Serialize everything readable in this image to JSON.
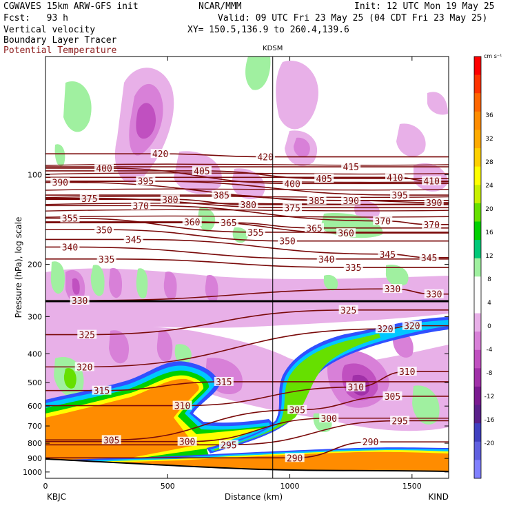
{
  "header": {
    "model": "CGWAVES 15km ARW-GFS init",
    "center": "NCAR/MMM",
    "init": "Init: 12 UTC Mon 19 May 25",
    "fcst": "Fcst:   93 h",
    "valid": "Valid: 09 UTC Fri 23 May 25 (04 CDT Fri 23 May 25)",
    "field1": "Vertical velocity",
    "xy": "XY= 150.5,136.9 to 260.4,139.6",
    "field2": "Boundary Layer Tracer",
    "field3": "Potential Temperature"
  },
  "colors": {
    "theta": "#7a0a0a",
    "vertical_line": "#000000"
  },
  "chart_data": {
    "type": "heatmap",
    "title": "",
    "xlabel": "Distance (km)",
    "ylabel": "Pressure (hPa), log scale",
    "xlim": [
      0,
      1650
    ],
    "ylim": [
      1050,
      40
    ],
    "y_scale": "log",
    "x_ticks": [
      0,
      500,
      1000,
      1500
    ],
    "y_ticks": [
      100,
      200,
      300,
      400,
      500,
      600,
      700,
      800,
      900,
      1000
    ],
    "x_tick_labels": [
      "0",
      "500",
      "1000",
      "1500"
    ],
    "y_tick_labels": [
      "100",
      "200",
      "300",
      "400",
      "500",
      "600",
      "700",
      "800",
      "900",
      "1000"
    ],
    "left_station": "KBJC",
    "right_station": "KIND",
    "marker_station": "KDSM",
    "marker_distance_km": 930,
    "colorbar": {
      "unit": "cm s⁻¹",
      "labels": [
        "36",
        "32",
        "28",
        "24",
        "20",
        "16",
        "12",
        "8",
        "4",
        "0",
        "-4",
        "-8",
        "-12",
        "-16",
        "-20"
      ],
      "colors": [
        "#ff0000",
        "#ff3300",
        "#ff6600",
        "#ff8c00",
        "#ffaa00",
        "#ffd000",
        "#ffff00",
        "#c8f000",
        "#66e000",
        "#00d000",
        "#00c878",
        "#a0f0a0",
        "#ffffff",
        "#ffffff",
        "#e8b0e8",
        "#d880d8",
        "#c050c0",
        "#a030a8",
        "#7a1a90",
        "#5a208a",
        "#4040c0",
        "#6060e0",
        "#8080ff"
      ]
    },
    "theta_labels": [
      {
        "value": 420,
        "x": 470,
        "p": 85
      },
      {
        "value": 420,
        "x": 900,
        "p": 87
      },
      {
        "value": 415,
        "x": 1250,
        "p": 94
      },
      {
        "value": 410,
        "x": 1430,
        "p": 102
      },
      {
        "value": 410,
        "x": 1580,
        "p": 105
      },
      {
        "value": 405,
        "x": 640,
        "p": 97
      },
      {
        "value": 405,
        "x": 1140,
        "p": 103
      },
      {
        "value": 400,
        "x": 240,
        "p": 95
      },
      {
        "value": 400,
        "x": 1010,
        "p": 107
      },
      {
        "value": 395,
        "x": 410,
        "p": 105
      },
      {
        "value": 395,
        "x": 1450,
        "p": 117
      },
      {
        "value": 390,
        "x": 60,
        "p": 106
      },
      {
        "value": 390,
        "x": 1250,
        "p": 122
      },
      {
        "value": 390,
        "x": 1590,
        "p": 124
      },
      {
        "value": 385,
        "x": 720,
        "p": 117
      },
      {
        "value": 385,
        "x": 1110,
        "p": 122
      },
      {
        "value": 380,
        "x": 510,
        "p": 121
      },
      {
        "value": 380,
        "x": 830,
        "p": 126
      },
      {
        "value": 375,
        "x": 180,
        "p": 120
      },
      {
        "value": 375,
        "x": 1010,
        "p": 129
      },
      {
        "value": 370,
        "x": 390,
        "p": 127
      },
      {
        "value": 370,
        "x": 1380,
        "p": 143
      },
      {
        "value": 370,
        "x": 1580,
        "p": 147
      },
      {
        "value": 365,
        "x": 750,
        "p": 145
      },
      {
        "value": 365,
        "x": 1100,
        "p": 151
      },
      {
        "value": 360,
        "x": 600,
        "p": 144
      },
      {
        "value": 360,
        "x": 1230,
        "p": 157
      },
      {
        "value": 355,
        "x": 100,
        "p": 140
      },
      {
        "value": 355,
        "x": 860,
        "p": 156
      },
      {
        "value": 350,
        "x": 240,
        "p": 153
      },
      {
        "value": 350,
        "x": 990,
        "p": 167
      },
      {
        "value": 345,
        "x": 360,
        "p": 165
      },
      {
        "value": 345,
        "x": 1400,
        "p": 185
      },
      {
        "value": 345,
        "x": 1570,
        "p": 190
      },
      {
        "value": 340,
        "x": 100,
        "p": 175
      },
      {
        "value": 340,
        "x": 1150,
        "p": 192
      },
      {
        "value": 335,
        "x": 250,
        "p": 192
      },
      {
        "value": 335,
        "x": 1260,
        "p": 205
      },
      {
        "value": 330,
        "x": 140,
        "p": 265
      },
      {
        "value": 330,
        "x": 1420,
        "p": 242
      },
      {
        "value": 330,
        "x": 1590,
        "p": 252
      },
      {
        "value": 325,
        "x": 170,
        "p": 345
      },
      {
        "value": 325,
        "x": 1240,
        "p": 285
      },
      {
        "value": 320,
        "x": 160,
        "p": 443
      },
      {
        "value": 320,
        "x": 1390,
        "p": 330
      },
      {
        "value": 320,
        "x": 1500,
        "p": 322
      },
      {
        "value": 315,
        "x": 230,
        "p": 532
      },
      {
        "value": 315,
        "x": 730,
        "p": 497
      },
      {
        "value": 310,
        "x": 560,
        "p": 598
      },
      {
        "value": 310,
        "x": 1270,
        "p": 518
      },
      {
        "value": 310,
        "x": 1480,
        "p": 459
      },
      {
        "value": 305,
        "x": 270,
        "p": 780
      },
      {
        "value": 305,
        "x": 1030,
        "p": 618
      },
      {
        "value": 305,
        "x": 1420,
        "p": 556
      },
      {
        "value": 300,
        "x": 580,
        "p": 790
      },
      {
        "value": 300,
        "x": 1160,
        "p": 659
      },
      {
        "value": 295,
        "x": 750,
        "p": 810
      },
      {
        "value": 295,
        "x": 1450,
        "p": 672
      },
      {
        "value": 290,
        "x": 1020,
        "p": 896
      },
      {
        "value": 290,
        "x": 1330,
        "p": 792
      }
    ]
  }
}
